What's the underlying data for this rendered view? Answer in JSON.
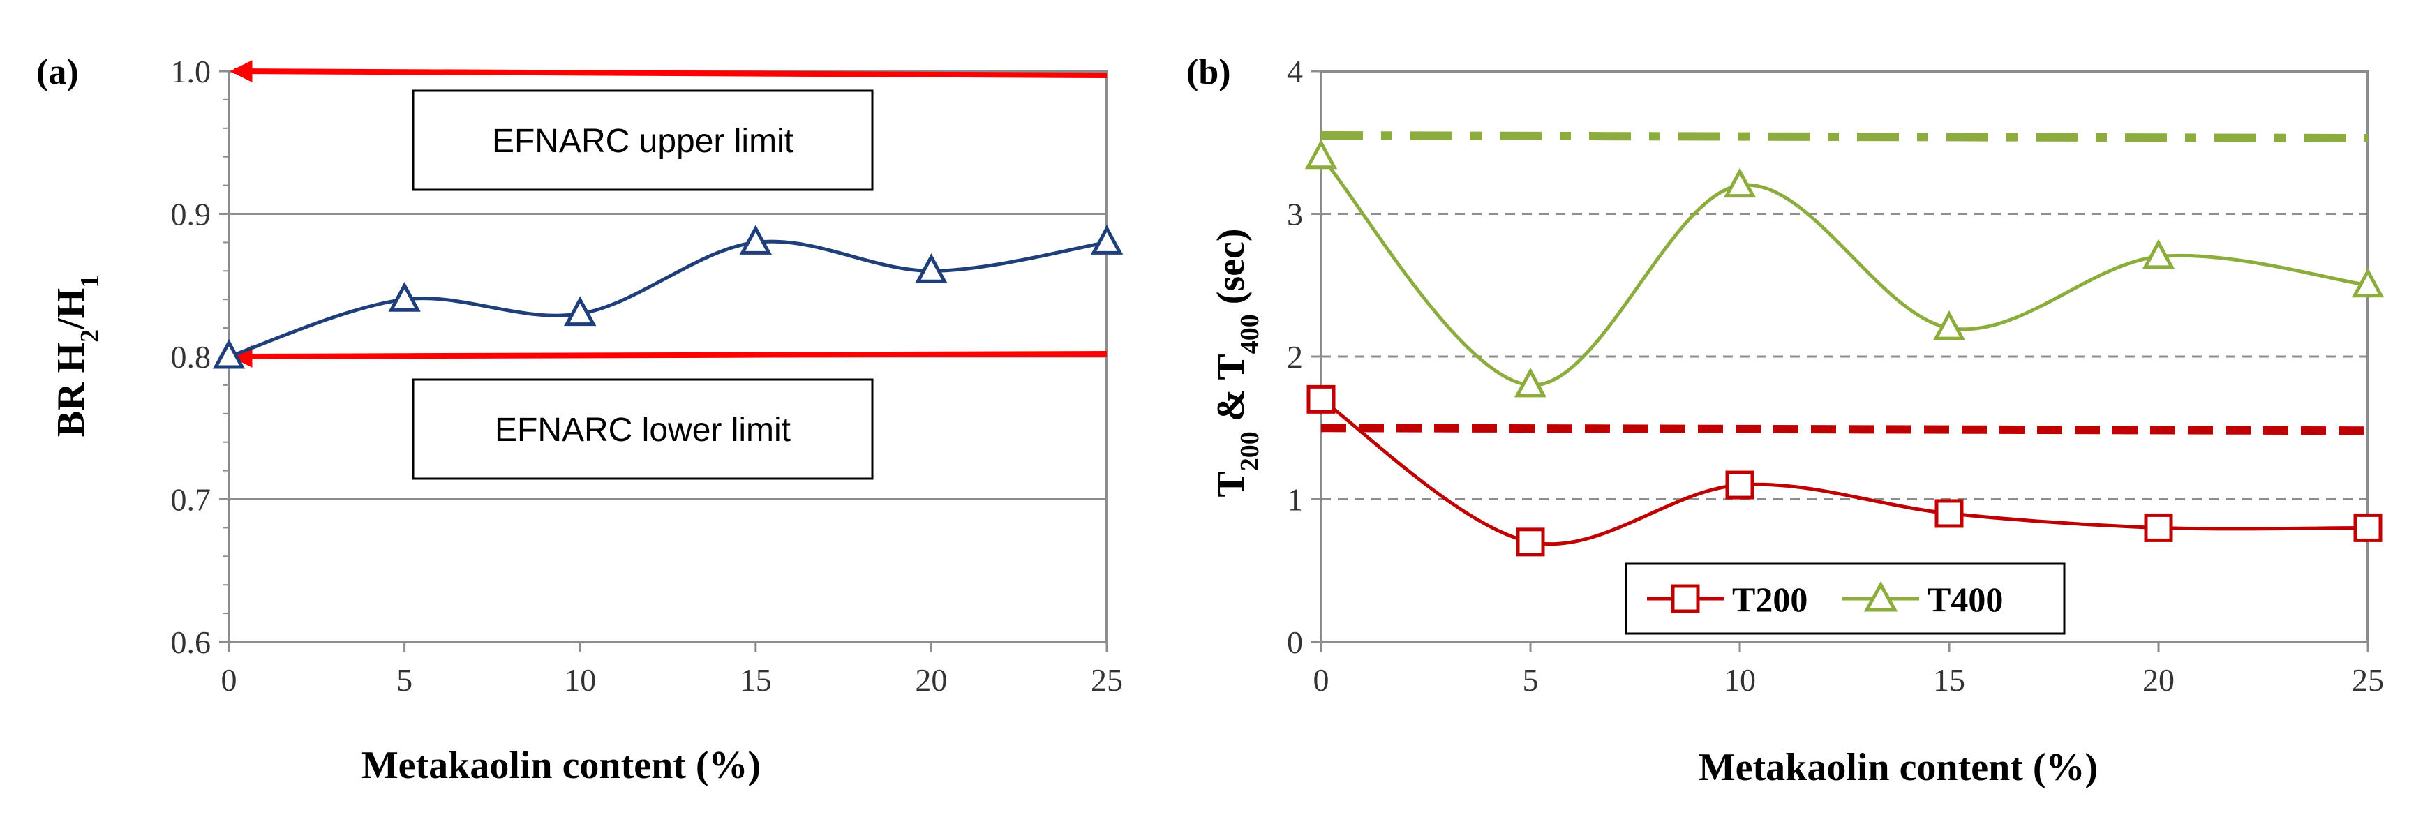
{
  "chart_data": [
    {
      "type": "line",
      "panel_label": "(a)",
      "xlabel": "Metakaolin content (%)",
      "ylabel": {
        "prefix": "BR H",
        "sub1": "2",
        "mid": "/H",
        "sub2": "1"
      },
      "x": [
        0,
        5,
        10,
        15,
        20,
        25
      ],
      "xlim": [
        0,
        25
      ],
      "ylim": [
        0.6,
        1.0
      ],
      "yticks": [
        "0.6",
        "0.7",
        "0.8",
        "0.9",
        "1.0"
      ],
      "xticks": [
        "0",
        "5",
        "10",
        "15",
        "20",
        "25"
      ],
      "grid": true,
      "series": [
        {
          "name": "BR",
          "values": [
            0.8,
            0.84,
            0.83,
            0.88,
            0.86,
            0.88
          ],
          "color": "#1f3f7a",
          "marker": "triangle"
        }
      ],
      "reference_lines": [
        {
          "label": "EFNARC upper limit",
          "value": 1.0,
          "color": "#ff0000"
        },
        {
          "label": "EFNARC lower limit",
          "value": 0.8,
          "color": "#ff0000"
        }
      ]
    },
    {
      "type": "line",
      "panel_label": "(b)",
      "xlabel": "Metakaolin content (%)",
      "ylabel": {
        "t1": "T",
        "sub1": "200",
        "amp": " & T",
        "sub2": "400",
        "unit": " (sec)"
      },
      "x": [
        0,
        5,
        10,
        15,
        20,
        25
      ],
      "xlim": [
        0,
        25
      ],
      "ylim": [
        0,
        4
      ],
      "yticks": [
        "0",
        "1",
        "2",
        "3",
        "4"
      ],
      "xticks": [
        "0",
        "5",
        "10",
        "15",
        "20",
        "25"
      ],
      "grid": true,
      "legend_position": "bottom-center",
      "series": [
        {
          "name": "T200",
          "values": [
            1.7,
            0.7,
            1.1,
            0.9,
            0.8,
            0.8
          ],
          "color": "#c00000",
          "marker": "square"
        },
        {
          "name": "T400",
          "values": [
            3.4,
            1.8,
            3.2,
            2.2,
            2.7,
            2.5
          ],
          "color": "#8cad3e",
          "marker": "triangle"
        }
      ],
      "reference_lines": [
        {
          "name": "T200 limit",
          "value": 1.5,
          "color": "#c00000",
          "style": "dashed"
        },
        {
          "name": "T400 limit",
          "value": 3.55,
          "color": "#8cad3e",
          "style": "dash-dot"
        }
      ]
    }
  ]
}
